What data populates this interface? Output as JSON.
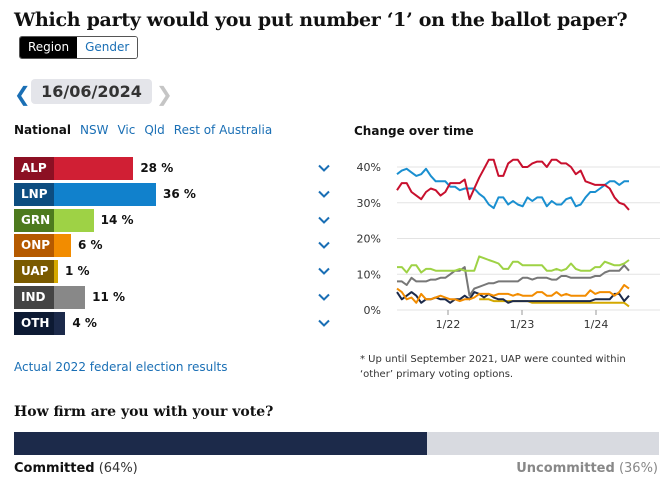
{
  "title": "Which party would you put number ‘1’ on the ballot paper?",
  "toggle": {
    "region": "Region",
    "gender": "Gender",
    "active": "Region"
  },
  "date": {
    "prev_icon": "❮",
    "value": "16/06/2024",
    "next_icon": "❯"
  },
  "filters": [
    "National",
    "NSW",
    "Vic",
    "Qld",
    "Rest of Australia"
  ],
  "parties": [
    {
      "code": "ALP",
      "value": 28,
      "label": "28 %",
      "tag_color": "#8c1023",
      "bar_color": "#d01f34"
    },
    {
      "code": "LNP",
      "value": 36,
      "label": "36 %",
      "tag_color": "#0d4d80",
      "bar_color": "#1181cc"
    },
    {
      "code": "GRN",
      "value": 14,
      "label": "14 %",
      "tag_color": "#4d7a1e",
      "bar_color": "#9ed245"
    },
    {
      "code": "ONP",
      "value": 6,
      "label": "6 %",
      "tag_color": "#b55a00",
      "bar_color": "#f28c00"
    },
    {
      "code": "UAP",
      "value": 1,
      "label": "1 %",
      "tag_color": "#7a5a00",
      "bar_color": "#d4a800"
    },
    {
      "code": "IND",
      "value": 11,
      "label": "11 %",
      "tag_color": "#444444",
      "bar_color": "#888888"
    },
    {
      "code": "OTH",
      "value": 4,
      "label": "4 %",
      "tag_color": "#0d1a33",
      "bar_color": "#1c2a4a"
    }
  ],
  "actual_link": "Actual 2022 federal election results",
  "chart_data": {
    "type": "line",
    "title": "Change over time",
    "x_ticks": [
      "1/22",
      "1/23",
      "1/24"
    ],
    "y_ticks": [
      "0%",
      "10%",
      "20%",
      "30%",
      "40%"
    ],
    "ylim": [
      0,
      40
    ],
    "grid": true,
    "series": [
      {
        "name": "ALP",
        "color": "#c8102e",
        "values": [
          33.5,
          35.5,
          35.5,
          33,
          32,
          31,
          33,
          34,
          33.5,
          32,
          33,
          35.5,
          35.5,
          35.5,
          36.5,
          31,
          34,
          37,
          39.5,
          42,
          42,
          37.5,
          37.5,
          41,
          42,
          42,
          40,
          40,
          41,
          41.5,
          41.5,
          40,
          42,
          42,
          41,
          41,
          40,
          38,
          39,
          36,
          35.5,
          35,
          35,
          35,
          34,
          31.5,
          30,
          29.5,
          28
        ]
      },
      {
        "name": "LNP",
        "color": "#1a8fd0",
        "values": [
          38,
          39,
          39.5,
          38.5,
          37.5,
          38,
          39.5,
          37.5,
          36,
          36,
          36,
          34.5,
          34.5,
          33.5,
          34,
          34,
          34,
          32.5,
          31.5,
          29.5,
          28.5,
          31.5,
          31.5,
          29.5,
          30.5,
          29.5,
          29,
          31.5,
          30.5,
          31.5,
          31.5,
          29,
          30.5,
          29.5,
          29.5,
          31,
          31.5,
          29,
          29.5,
          31.5,
          33,
          33,
          34,
          35,
          36,
          36,
          35,
          36,
          36
        ]
      },
      {
        "name": "GRN",
        "color": "#9ed245",
        "values": [
          12,
          12,
          10.5,
          12.5,
          12.5,
          10.5,
          11.5,
          11.5,
          11,
          11,
          11,
          11,
          11,
          11.5,
          11,
          11,
          11,
          15,
          14.5,
          14,
          13.5,
          13,
          11.5,
          11.5,
          13.5,
          13.5,
          12.5,
          12.5,
          12.5,
          12.5,
          12.5,
          11,
          11,
          11.5,
          11,
          11.5,
          13,
          11.5,
          11,
          11,
          11,
          12,
          12,
          13.5,
          13,
          12.5,
          12.5,
          13,
          14
        ]
      },
      {
        "name": "IND",
        "color": "#777777",
        "values": [
          8,
          8,
          7,
          9,
          8,
          8,
          8,
          8.5,
          8.5,
          9,
          9,
          10,
          11,
          11,
          12,
          4,
          6,
          6.5,
          7,
          7.5,
          7.5,
          8,
          8,
          8,
          8,
          8,
          9,
          9,
          8.5,
          9,
          9,
          9,
          8.5,
          8.5,
          9.5,
          9.5,
          9,
          9,
          9,
          9,
          9,
          9.5,
          9.5,
          10.5,
          11,
          11,
          11,
          12.5,
          11
        ]
      },
      {
        "name": "ONP",
        "color": "#f28c00",
        "values": [
          6,
          5,
          3,
          3.5,
          2,
          4.5,
          3,
          3,
          3.5,
          4,
          3.5,
          3,
          3,
          2.5,
          3,
          3,
          3.5,
          4.5,
          4.5,
          4.5,
          4,
          4.5,
          4.5,
          4.5,
          4,
          4.5,
          4,
          4,
          4,
          5,
          5,
          4,
          4,
          5,
          4,
          4.5,
          4,
          4,
          4,
          4,
          5.5,
          4.5,
          5,
          5,
          5,
          4,
          5,
          7,
          6
        ]
      },
      {
        "name": "OTH",
        "color": "#1c2a4a",
        "values": [
          5,
          3,
          4,
          5,
          4,
          2,
          3,
          3,
          3.5,
          3,
          3,
          2,
          3,
          3,
          4,
          3,
          5,
          4.5,
          3.5,
          4.5,
          3.5,
          3,
          3,
          2,
          2.5,
          2.5,
          2.5,
          2.5,
          2.5,
          2.5,
          2.5,
          2.5,
          2.5,
          2.5,
          2.5,
          2.5,
          2.5,
          2.5,
          2.5,
          2.5,
          2.5,
          3,
          3,
          3,
          3,
          4.5,
          4.5,
          2.5,
          4
        ]
      },
      {
        "name": "UAP",
        "color": "#d4a800",
        "values": [
          null,
          null,
          null,
          null,
          null,
          null,
          null,
          null,
          null,
          null,
          null,
          null,
          null,
          null,
          null,
          null,
          null,
          3,
          3,
          3,
          2.5,
          2.5,
          2.5,
          2.5,
          2.5,
          2.5,
          2.5,
          2.5,
          2,
          2,
          2,
          2,
          2,
          2,
          2,
          2,
          2,
          2,
          2,
          2,
          2,
          2,
          2,
          2,
          2,
          2,
          2,
          2,
          1
        ]
      }
    ]
  },
  "footnote": "* Up until September 2021, UAP were counted within ‘other’ primary voting options.",
  "firm": {
    "title": "How firm are you with your vote?",
    "committed_label": "Committed",
    "committed_pct": 64,
    "committed_text": "(64%)",
    "uncommitted_label": "Uncommitted",
    "uncommitted_text": "(36%)"
  }
}
